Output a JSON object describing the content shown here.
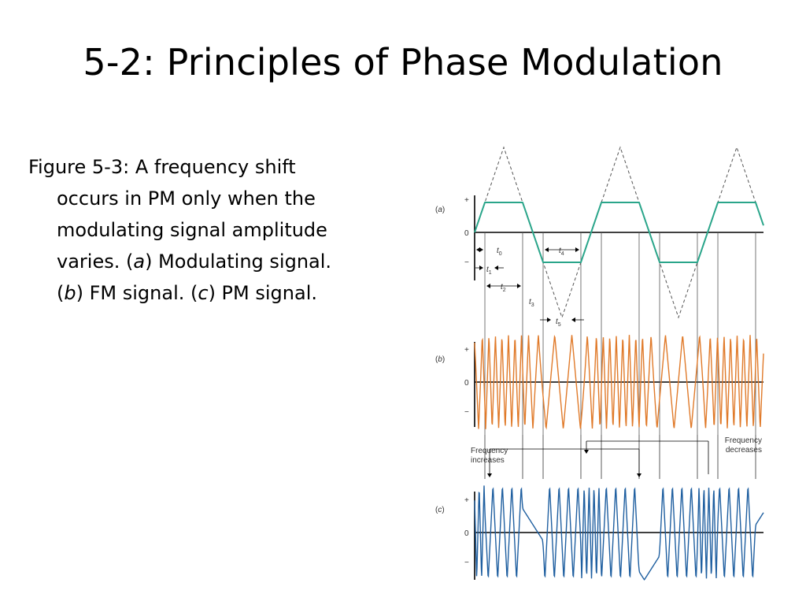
{
  "slide": {
    "title": "5-2: Principles of Phase Modulation"
  },
  "caption": {
    "lines": [
      [
        {
          "t": "Figure 5-3: A frequency shift"
        }
      ],
      [
        {
          "t": "occurs in PM only when the"
        }
      ],
      [
        {
          "t": "modulating signal amplitude"
        }
      ],
      [
        {
          "t": "varies. ("
        },
        {
          "t": "a",
          "i": true
        },
        {
          "t": ") Modulating signal."
        }
      ],
      [
        {
          "t": "("
        },
        {
          "t": "b",
          "i": true
        },
        {
          "t": ") FM signal. ("
        },
        {
          "t": "c",
          "i": true
        },
        {
          "t": ") PM signal."
        }
      ]
    ]
  },
  "figure": {
    "colors": {
      "modulating": "#2aa58a",
      "fm": "#e07a2a",
      "pm": "#1f5fa0",
      "line": "#000000",
      "label": "#333333"
    },
    "panels": [
      {
        "id": "a",
        "label": "a",
        "plus": "+",
        "zero": "0",
        "minus": "−"
      },
      {
        "id": "b",
        "label": "b",
        "plus": "+",
        "zero": "0",
        "minus": "−"
      },
      {
        "id": "c",
        "label": "c",
        "plus": "+",
        "zero": "0",
        "minus": "−"
      }
    ],
    "time_labels": [
      {
        "base": "t",
        "sub": "0"
      },
      {
        "base": "t",
        "sub": "1"
      },
      {
        "base": "t",
        "sub": "2"
      },
      {
        "base": "t",
        "sub": "3"
      },
      {
        "base": "t",
        "sub": "4"
      },
      {
        "base": "t",
        "sub": "5"
      }
    ],
    "annotations": {
      "increase": [
        "Frequency",
        "increases"
      ],
      "decrease": [
        "Frequency",
        "decreases"
      ]
    }
  }
}
